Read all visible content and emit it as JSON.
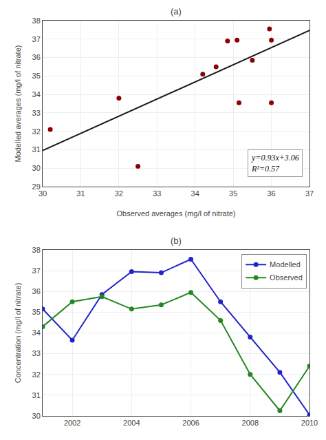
{
  "chart_data": [
    {
      "type": "scatter",
      "title": "(a)",
      "xlabel": "Observed averages (mg/l of nitrate)",
      "ylabel": "Modelled averages (mg/l of nitrate)",
      "xlim": [
        30,
        37
      ],
      "ylim": [
        29,
        38
      ],
      "xticks": [
        30,
        31,
        32,
        33,
        34,
        35,
        36,
        37
      ],
      "yticks": [
        29,
        30,
        31,
        32,
        33,
        34,
        35,
        36,
        37,
        38
      ],
      "grid": true,
      "series": [
        {
          "type": "scatter",
          "color": "#8B0000",
          "marker": "circle",
          "x": [
            30.2,
            32.0,
            32.5,
            34.2,
            34.55,
            34.85,
            35.1,
            35.15,
            35.5,
            35.95,
            36.0,
            36.0
          ],
          "values": [
            32.1,
            33.8,
            30.1,
            35.1,
            35.5,
            36.9,
            36.95,
            33.55,
            35.85,
            37.55,
            36.95,
            33.55
          ]
        },
        {
          "type": "line",
          "color": "#1a1a1a",
          "line_style": "solid",
          "x": [
            30,
            37
          ],
          "values": [
            30.96,
            37.47
          ]
        }
      ],
      "annotations": [
        "y=0.93x+3.06",
        "R²=0.57"
      ]
    },
    {
      "type": "line",
      "title": "(b)",
      "ylabel": "Concentration (mg/l of nitrate)",
      "x": [
        2001,
        2002,
        2003,
        2004,
        2005,
        2006,
        2007,
        2008,
        2009,
        2010
      ],
      "xlim": [
        2001,
        2010
      ],
      "ylim": [
        30,
        38
      ],
      "xticks": [
        2002,
        2004,
        2006,
        2008,
        2010
      ],
      "yticks": [
        30,
        31,
        32,
        33,
        34,
        35,
        36,
        37,
        38
      ],
      "grid": true,
      "legend": "upper right",
      "series": [
        {
          "name": "Modelled",
          "color": "#2222CC",
          "marker": "circle",
          "values": [
            35.15,
            33.65,
            35.85,
            36.95,
            36.9,
            37.55,
            35.5,
            33.8,
            32.1,
            30.05
          ]
        },
        {
          "name": "Observed",
          "color": "#228822",
          "marker": "circle",
          "values": [
            34.3,
            35.5,
            35.75,
            35.15,
            35.35,
            35.95,
            34.6,
            32.0,
            30.25,
            32.4
          ]
        }
      ]
    }
  ]
}
